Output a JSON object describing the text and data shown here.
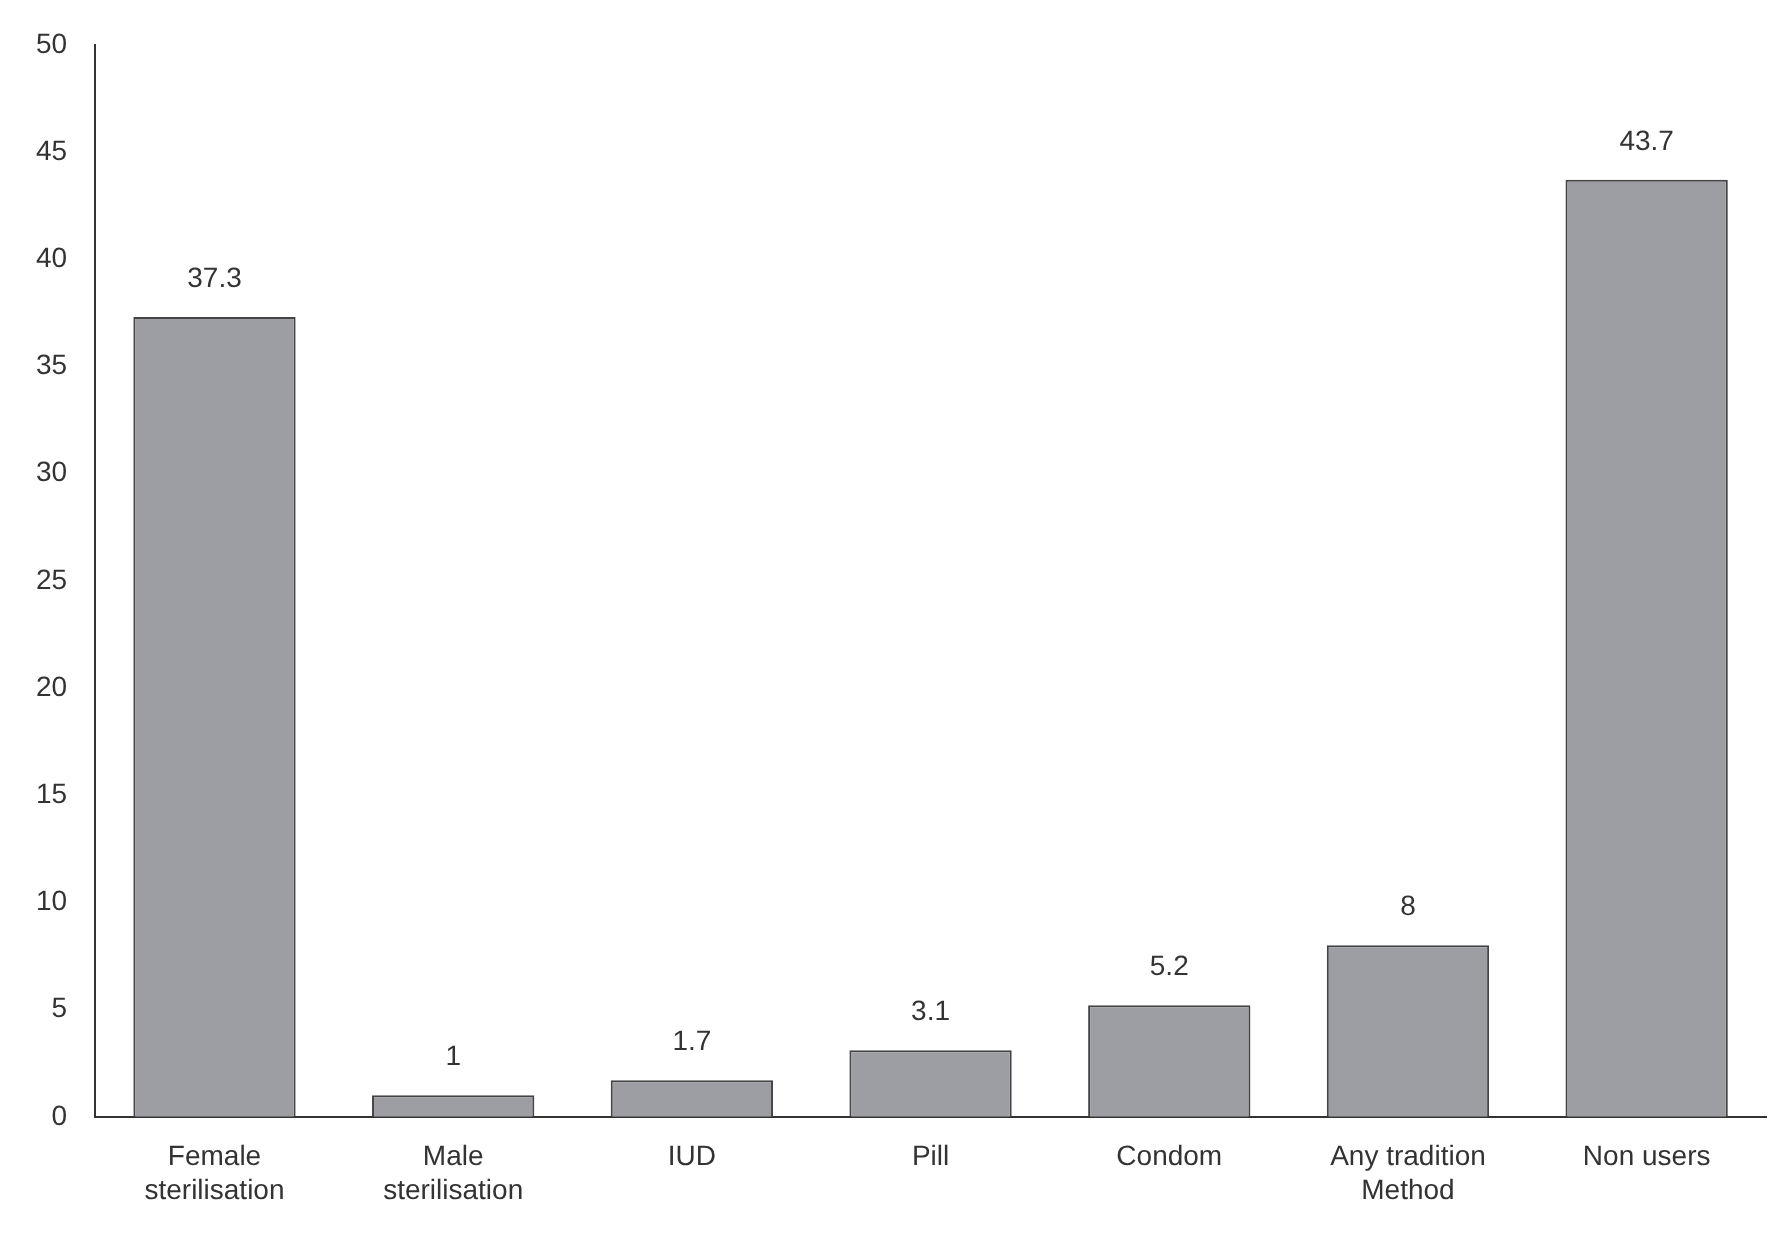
{
  "chart_data": {
    "type": "bar",
    "categories": [
      "Female sterilisation",
      "Male sterilisation",
      "IUD",
      "Pill",
      "Condom",
      "Any tradition Method",
      "Non users"
    ],
    "values": [
      37.3,
      1,
      1.7,
      3.1,
      5.2,
      8,
      43.7
    ],
    "color": "#9d9ea3",
    "ylim": [
      0,
      50
    ],
    "yticks": [
      0,
      5,
      10,
      15,
      20,
      25,
      30,
      35,
      40,
      45,
      50
    ],
    "grid": false,
    "legend": false,
    "data_labels": true
  }
}
